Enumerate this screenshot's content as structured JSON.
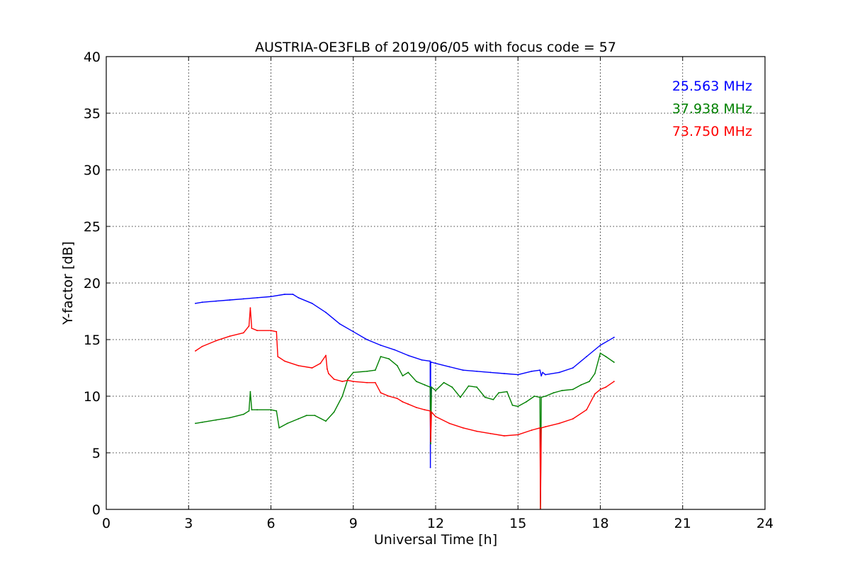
{
  "chart_data": {
    "type": "line",
    "title": "AUSTRIA-OE3FLB of 2019/06/05 with focus code = 57",
    "xlabel": "Universal Time [h]",
    "ylabel": "Y-factor [dB]",
    "xlim": [
      0,
      24
    ],
    "ylim": [
      0,
      40
    ],
    "xticks": [
      0,
      3,
      6,
      9,
      12,
      15,
      18,
      21,
      24
    ],
    "yticks": [
      0,
      5,
      10,
      15,
      20,
      25,
      30,
      35,
      40
    ],
    "grid": true,
    "legend_position": "top-right",
    "series": [
      {
        "name": "25.563 MHz",
        "color": "#0000ff",
        "x": [
          3.25,
          3.5,
          4.0,
          4.5,
          5.0,
          5.5,
          6.0,
          6.5,
          6.8,
          7.0,
          7.5,
          8.0,
          8.5,
          9.0,
          9.5,
          10.0,
          10.5,
          11.0,
          11.5,
          11.8,
          11.81,
          11.82,
          11.85,
          12.0,
          12.5,
          13.0,
          13.5,
          14.0,
          14.5,
          15.0,
          15.5,
          15.8,
          15.85,
          15.9,
          16.0,
          16.5,
          17.0,
          17.5,
          18.0,
          18.5
        ],
        "y": [
          18.2,
          18.3,
          18.4,
          18.5,
          18.6,
          18.7,
          18.8,
          19.0,
          19.0,
          18.7,
          18.2,
          17.4,
          16.4,
          15.7,
          15.0,
          14.5,
          14.1,
          13.6,
          13.2,
          13.1,
          3.7,
          13.0,
          13.0,
          12.9,
          12.6,
          12.3,
          12.2,
          12.1,
          12.0,
          11.9,
          12.2,
          12.3,
          11.8,
          12.1,
          11.9,
          12.1,
          12.5,
          13.5,
          14.5,
          15.2
        ]
      },
      {
        "name": "37.938 MHz",
        "color": "#008000",
        "x": [
          3.25,
          3.5,
          4.0,
          4.5,
          5.0,
          5.2,
          5.25,
          5.3,
          5.5,
          6.0,
          6.2,
          6.3,
          6.6,
          7.0,
          7.3,
          7.6,
          8.0,
          8.3,
          8.6,
          8.8,
          9.0,
          9.5,
          9.8,
          10.0,
          10.3,
          10.6,
          10.8,
          11.0,
          11.3,
          11.6,
          11.8,
          11.82,
          11.85,
          12.0,
          12.3,
          12.6,
          12.9,
          13.2,
          13.5,
          13.8,
          14.1,
          14.3,
          14.6,
          14.8,
          15.0,
          15.3,
          15.6,
          15.8,
          15.82,
          15.85,
          16.0,
          16.3,
          16.6,
          17.0,
          17.3,
          17.6,
          17.8,
          18.0,
          18.2,
          18.5
        ],
        "y": [
          7.6,
          7.7,
          7.9,
          8.1,
          8.4,
          8.7,
          10.4,
          8.8,
          8.8,
          8.8,
          8.7,
          7.2,
          7.6,
          8.0,
          8.3,
          8.3,
          7.8,
          8.6,
          10.0,
          11.5,
          12.1,
          12.2,
          12.3,
          13.5,
          13.3,
          12.7,
          11.8,
          12.1,
          11.3,
          11.0,
          10.8,
          5.8,
          10.8,
          10.5,
          11.2,
          10.8,
          9.9,
          10.9,
          10.8,
          9.9,
          9.7,
          10.3,
          10.4,
          9.2,
          9.1,
          9.5,
          10.0,
          9.9,
          0.0,
          9.9,
          10.0,
          10.3,
          10.5,
          10.6,
          11.0,
          11.3,
          12.0,
          13.8,
          13.5,
          13.0
        ]
      },
      {
        "name": "73.750 MHz",
        "color": "#ff0000",
        "x": [
          3.25,
          3.5,
          4.0,
          4.5,
          5.0,
          5.2,
          5.25,
          5.3,
          5.5,
          6.0,
          6.2,
          6.25,
          6.5,
          7.0,
          7.5,
          7.8,
          8.0,
          8.05,
          8.1,
          8.3,
          8.6,
          8.8,
          9.0,
          9.5,
          9.8,
          10.0,
          10.3,
          10.6,
          10.8,
          11.0,
          11.3,
          11.6,
          11.8,
          11.82,
          11.85,
          12.0,
          12.5,
          13.0,
          13.5,
          14.0,
          14.5,
          15.0,
          15.5,
          15.8,
          15.82,
          15.85,
          16.0,
          16.5,
          17.0,
          17.5,
          17.8,
          18.0,
          18.2,
          18.5
        ],
        "y": [
          14.0,
          14.4,
          14.9,
          15.3,
          15.6,
          16.2,
          17.8,
          16.0,
          15.8,
          15.8,
          15.7,
          13.5,
          13.1,
          12.7,
          12.5,
          12.9,
          13.6,
          12.4,
          12.0,
          11.5,
          11.3,
          11.4,
          11.3,
          11.2,
          11.2,
          10.3,
          10.0,
          9.8,
          9.5,
          9.3,
          9.0,
          8.8,
          8.7,
          6.0,
          8.6,
          8.2,
          7.6,
          7.2,
          6.9,
          6.7,
          6.5,
          6.6,
          7.0,
          7.2,
          0.0,
          7.2,
          7.3,
          7.6,
          8.0,
          8.8,
          10.2,
          10.6,
          10.8,
          11.3
        ]
      }
    ]
  }
}
